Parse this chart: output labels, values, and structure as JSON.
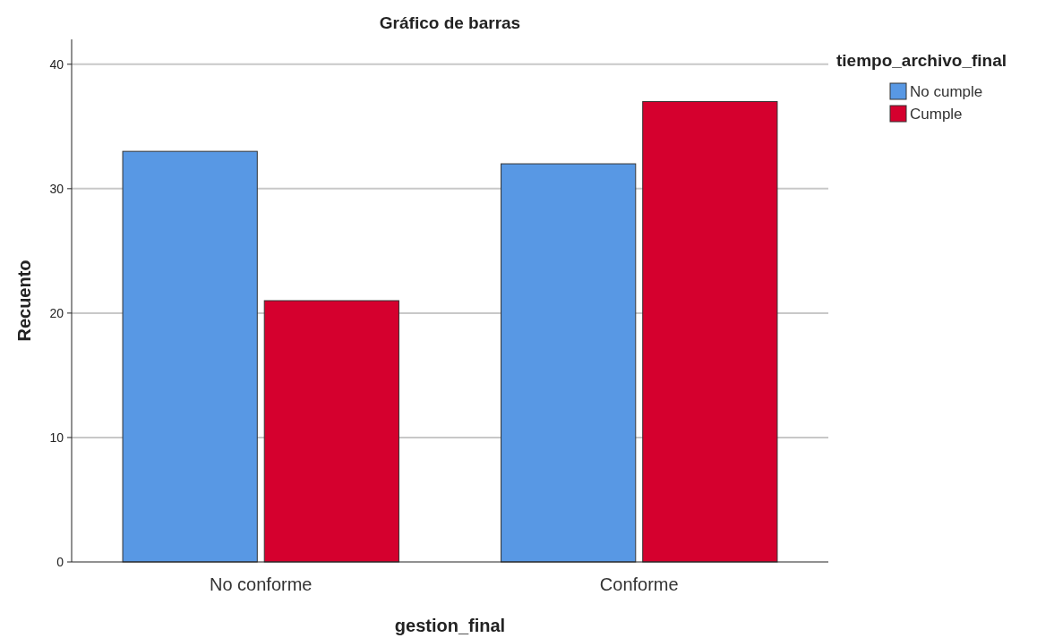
{
  "chart_data": {
    "type": "bar",
    "title": "Gráfico de barras",
    "xlabel": "gestion_final",
    "ylabel": "Recuento",
    "legend_title": "tiempo_archivo_final",
    "categories": [
      "No conforme",
      "Conforme"
    ],
    "series": [
      {
        "name": "No cumple",
        "color": "#5898e4",
        "values": [
          33,
          32
        ]
      },
      {
        "name": "Cumple",
        "color": "#d5002e",
        "values": [
          21,
          37
        ]
      }
    ],
    "ylim": [
      0,
      42
    ],
    "yticks": [
      0,
      10,
      20,
      30,
      40
    ],
    "grid": "y",
    "legend": "top right"
  }
}
